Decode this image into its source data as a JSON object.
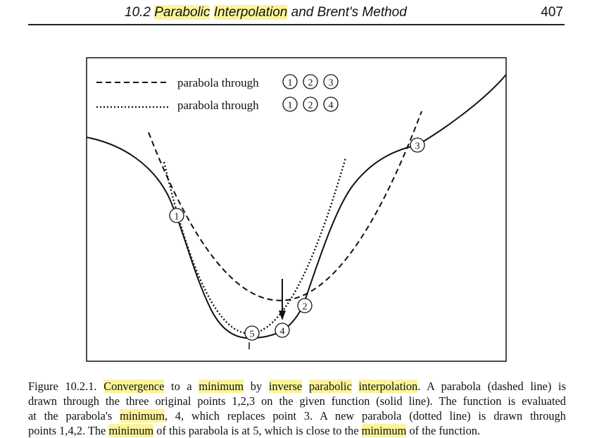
{
  "header": {
    "section_number": "10.2",
    "title_highlight_1": "Parabolic",
    "title_highlight_2": "Interpolation",
    "title_rest": "and Brent's Method",
    "page_number": "407"
  },
  "legend": {
    "dashed_label": "parabola through",
    "dotted_label": "parabola through"
  },
  "point_labels": {
    "p1": "1",
    "p2": "2",
    "p3": "3",
    "p4": "4",
    "p5": "5"
  },
  "caption": {
    "lines": [
      [
        "Figure 10.2.1.  ",
        {
          "hl": "Convergence"
        },
        " to a ",
        {
          "hl": "minimum"
        },
        " by ",
        {
          "hl": "inverse"
        },
        " ",
        {
          "hl": "parabolic"
        },
        " ",
        {
          "hl": "interpolation"
        },
        ". A parabola (dashed line) is"
      ],
      [
        "drawn through the three original points 1,2,3 on the given function (solid line). The function is evaluated"
      ],
      [
        "at the parabola's ",
        {
          "hl": "minimum"
        },
        ", 4, which replaces point 3. A new parabola (dotted line) is drawn through"
      ],
      [
        "points 1,4,2. The ",
        {
          "hl": "minimum"
        },
        " of this parabola is at 5, which is close to the ",
        {
          "hl": "minimum"
        },
        " of the function."
      ]
    ]
  },
  "colors": {
    "highlight": "#fbf49a",
    "ink": "#111111"
  }
}
